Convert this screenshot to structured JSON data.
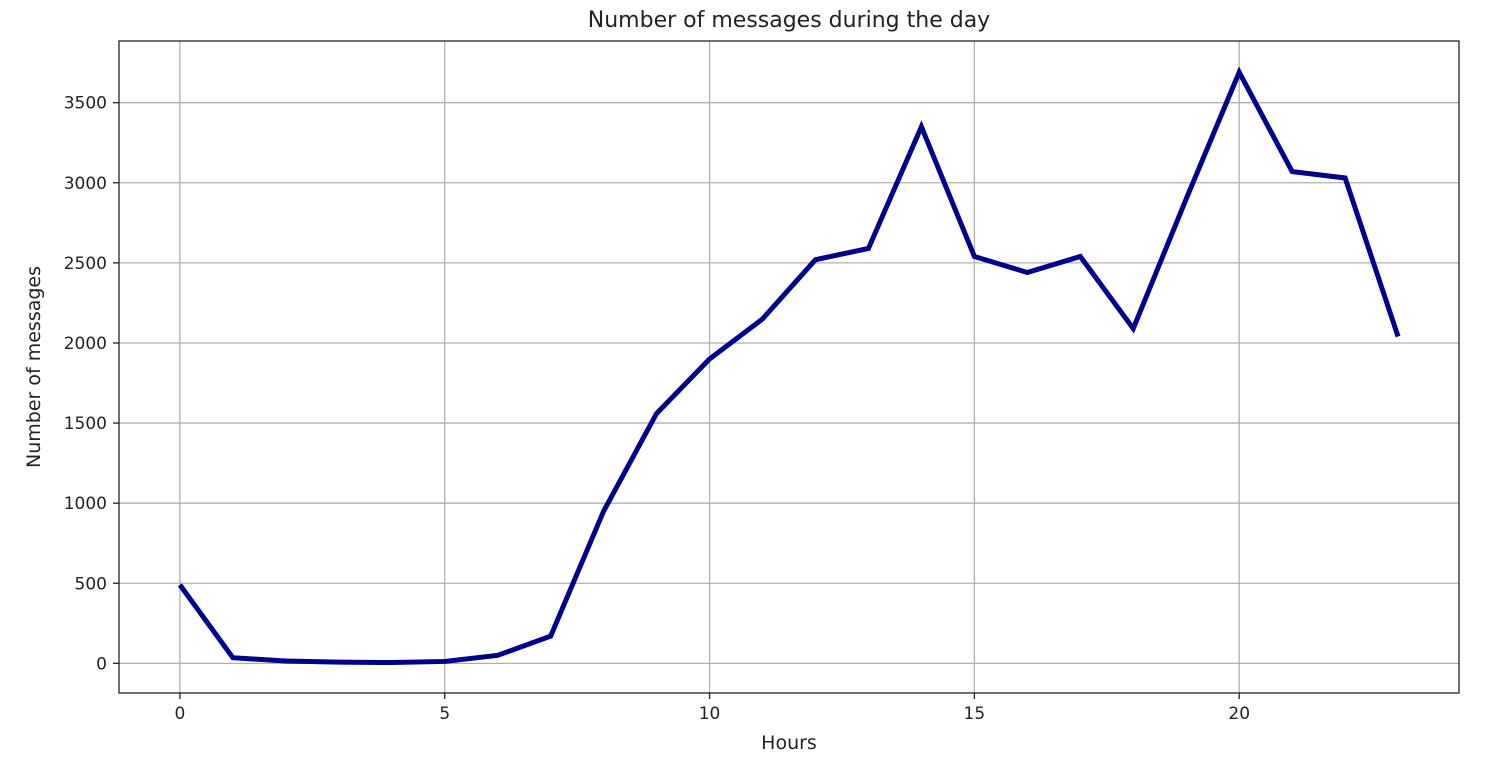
{
  "chart_data": {
    "type": "line",
    "title": "Number of messages during the day",
    "xlabel": "Hours",
    "ylabel": "Number of messages",
    "xlim": [
      -1.15,
      24.15
    ],
    "ylim": [
      -185,
      3885
    ],
    "xticks": [
      0,
      5,
      10,
      15,
      20
    ],
    "yticks": [
      0,
      500,
      1000,
      1500,
      2000,
      2500,
      3000,
      3500
    ],
    "grid": true,
    "line_color": "#00008b",
    "series": [
      {
        "x": [
          0,
          1,
          2,
          3,
          4,
          5,
          6,
          7,
          8,
          9,
          10,
          11,
          12,
          13,
          14,
          15,
          16,
          17,
          18,
          19,
          20,
          21,
          22,
          23
        ],
        "values": [
          490,
          35,
          15,
          8,
          5,
          12,
          50,
          170,
          950,
          1560,
          1900,
          2150,
          2520,
          2590,
          3350,
          2540,
          2440,
          2540,
          2090,
          2900,
          3690,
          3070,
          3030,
          2040
        ]
      }
    ]
  }
}
